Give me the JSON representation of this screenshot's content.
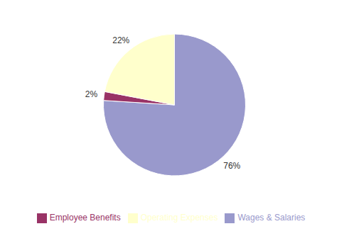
{
  "chart_data": {
    "type": "pie",
    "categories": [
      "Wages & Salaries",
      "Employee Benefits",
      "Operating Expenses"
    ],
    "values": [
      76,
      2,
      22
    ],
    "value_labels": [
      "76%",
      "2%",
      "22%"
    ],
    "colors": [
      "#9999cc",
      "#993366",
      "#ffffcc"
    ],
    "data_labels": true,
    "legend": "bottom"
  }
}
